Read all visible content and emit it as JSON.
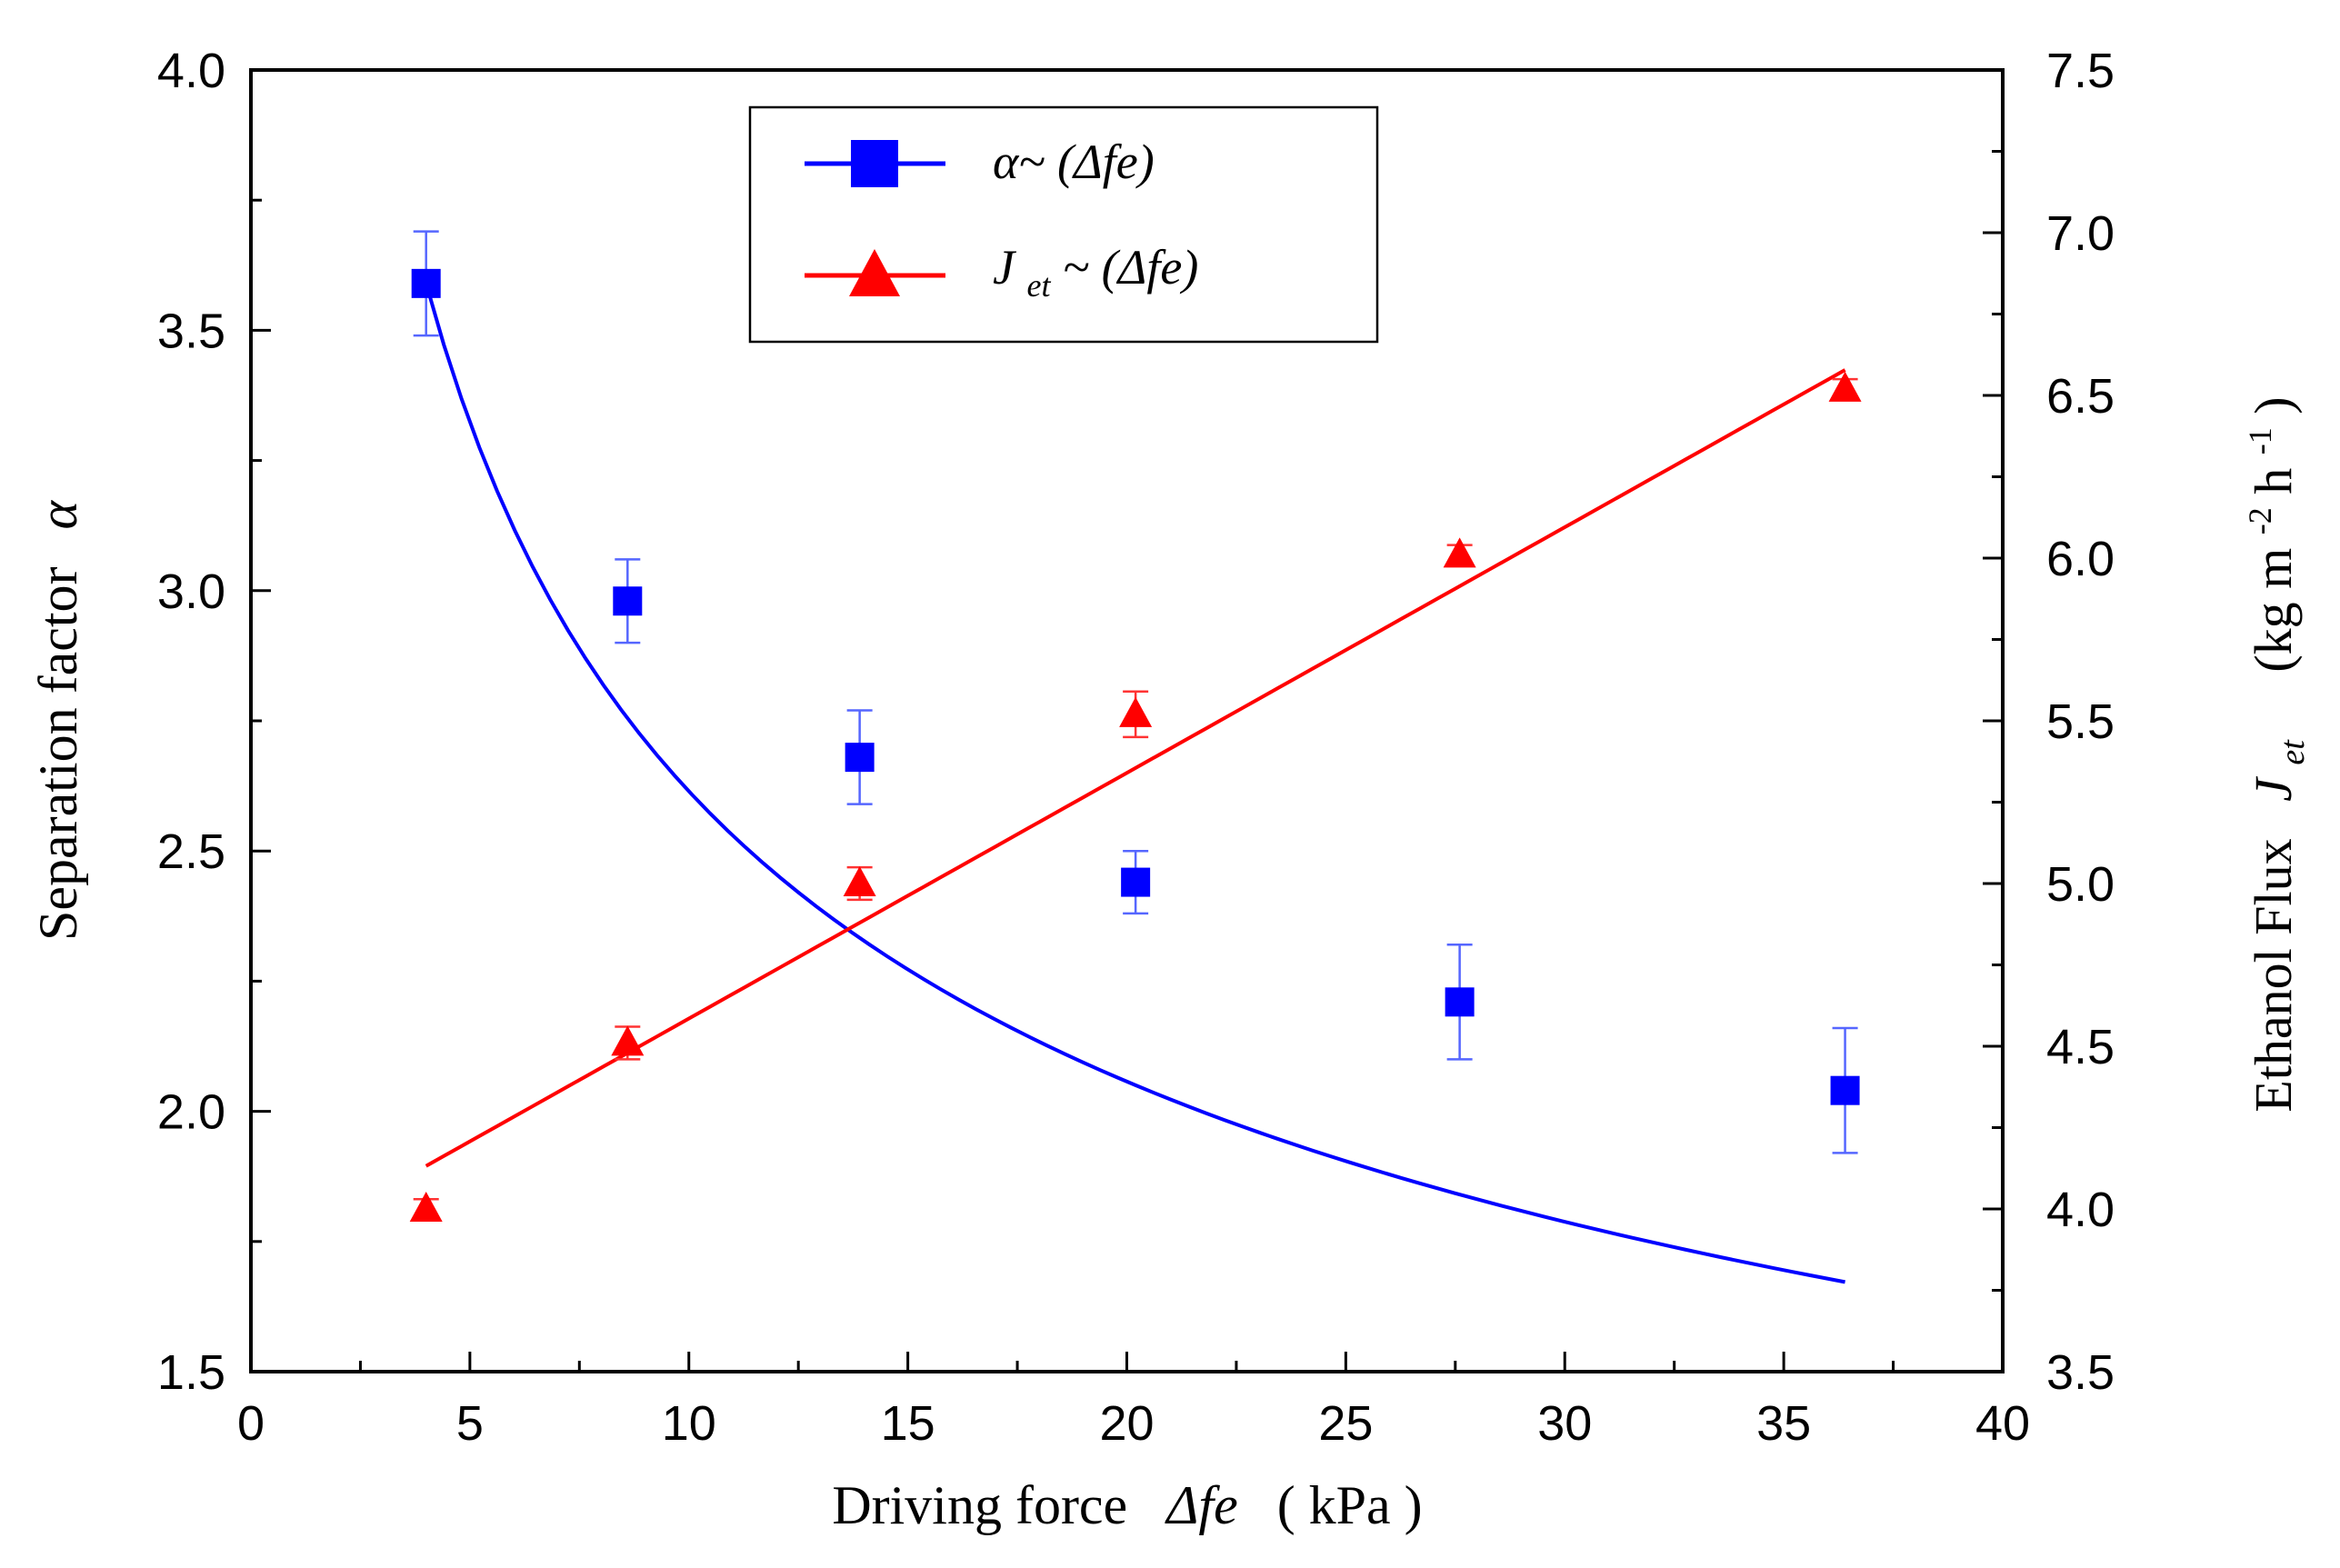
{
  "chart_data": {
    "type": "line",
    "x": {
      "label": "Driving force",
      "symbol": "Δfe",
      "unit": "( kPa )",
      "range": [
        0,
        40
      ],
      "ticks": [
        0,
        5,
        10,
        15,
        20,
        25,
        30,
        35,
        40
      ],
      "tick_labels": [
        "0",
        "5",
        "10",
        "15",
        "20",
        "25",
        "30",
        "35",
        "40"
      ]
    },
    "y_left": {
      "label": "Separation factor",
      "symbol": "α",
      "range": [
        1.5,
        4.0
      ],
      "ticks": [
        1.5,
        2.0,
        2.5,
        3.0,
        3.5,
        4.0
      ],
      "tick_labels": [
        "1.5",
        "2.0",
        "2.5",
        "3.0",
        "3.5",
        "4.0"
      ]
    },
    "y_right": {
      "label": "Ethanol Flux",
      "symbol_main": "J",
      "symbol_sub": "et",
      "unit_main": "(kg m",
      "unit_sup1": "-2",
      "unit_mid": " h",
      "unit_sup2": "-1",
      "unit_end": ")",
      "range": [
        3.5,
        7.5
      ],
      "ticks": [
        3.5,
        4.0,
        4.5,
        5.0,
        5.5,
        6.0,
        6.5,
        7.0,
        7.5
      ],
      "tick_labels": [
        "3.5",
        "4.0",
        "4.5",
        "5.0",
        "5.5",
        "6.0",
        "6.5",
        "7.0",
        "7.5"
      ]
    },
    "series": [
      {
        "name": "α~ (Δfe)",
        "legend_main": "α~ (Δfe)",
        "axis": "left",
        "marker": "square",
        "color": "#0000ff",
        "x": [
          4.0,
          8.6,
          13.9,
          20.2,
          27.6,
          36.4
        ],
        "y": [
          3.59,
          2.98,
          2.68,
          2.44,
          2.21,
          2.04
        ],
        "error": [
          0.1,
          0.08,
          0.09,
          0.06,
          0.11,
          0.12
        ],
        "fit": "power",
        "fit_params": {
          "a": 5.8,
          "b": -0.346
        },
        "fit_range": [
          4.0,
          36.4
        ]
      },
      {
        "name": "Jet~ (Δfe)",
        "legend_main": "J",
        "legend_sub": "et",
        "legend_rest": "~ (Δfe)",
        "axis": "right",
        "marker": "triangle",
        "color": "#ff0000",
        "x": [
          4.0,
          8.6,
          13.9,
          20.2,
          27.6,
          36.4
        ],
        "y": [
          4.0,
          4.51,
          5.0,
          5.52,
          6.01,
          6.52
        ],
        "error": [
          0.03,
          0.05,
          0.05,
          0.07,
          0.03,
          0.03
        ],
        "fit": "linear",
        "fit_params": {
          "slope": 0.0755,
          "intercept": 3.83
        },
        "fit_range": [
          4.0,
          36.4
        ]
      }
    ],
    "legend_position": "top-center"
  }
}
